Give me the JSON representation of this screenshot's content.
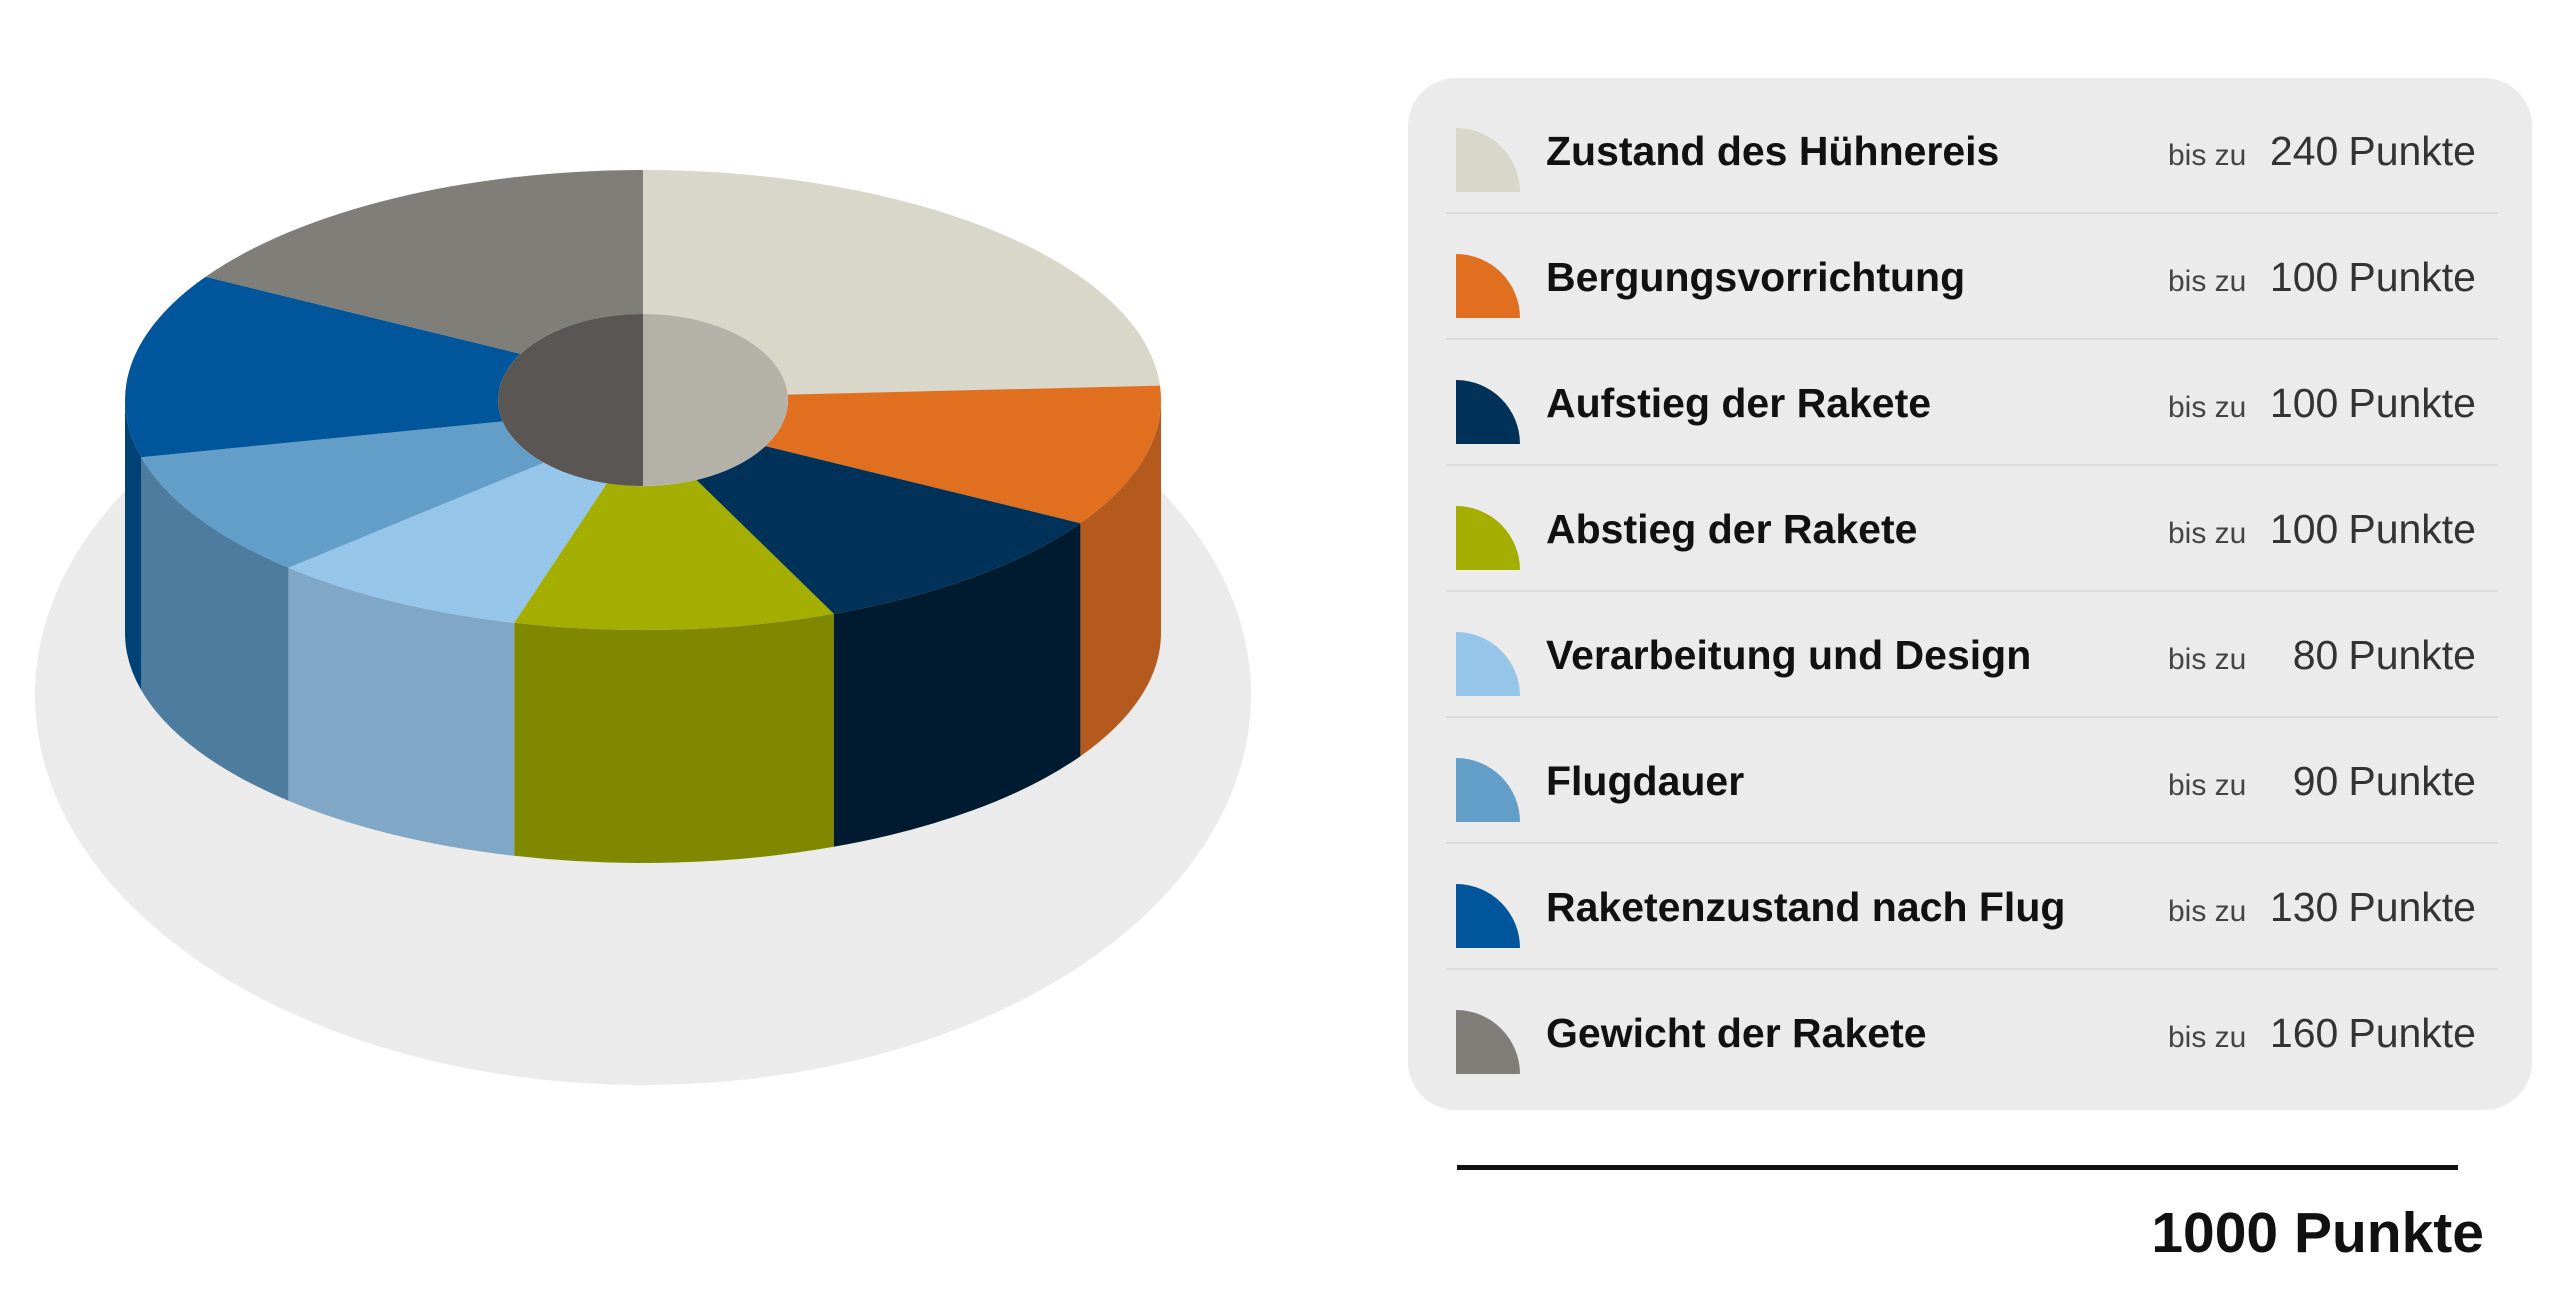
{
  "chart_data": {
    "type": "pie",
    "variant": "3d-donut",
    "categories": [
      "Zustand des Hühnereis",
      "Bergungsvorrichtung",
      "Aufstieg der Rakete",
      "Abstieg der Rakete",
      "Verarbeitung und Design",
      "Flugdauer",
      "Raketenzustand nach Flug",
      "Gewicht der Rakete"
    ],
    "values": [
      240,
      100,
      100,
      100,
      80,
      90,
      130,
      160
    ],
    "colors": [
      "#d8d7ca",
      "#e07020",
      "#003259",
      "#a4ae00",
      "#96c5ea",
      "#629ec8",
      "#00559b",
      "#7f7e79"
    ],
    "side_colors": [
      "#b8b7ab",
      "#b45a1e",
      "#001a30",
      "#808800",
      "#80a8c6",
      "#4e7c9f",
      "#004276",
      "#646460"
    ],
    "legend_position": "right"
  },
  "legend": {
    "prefix": "bis zu",
    "unit": "Punkte",
    "items": [
      {
        "label": "Zustand des Hühnereis",
        "value": "240",
        "color": "#d8d7ca"
      },
      {
        "label": "Bergungsvorrichtung",
        "value": "100",
        "color": "#e07020"
      },
      {
        "label": "Aufstieg der Rakete",
        "value": "100",
        "color": "#003259"
      },
      {
        "label": "Abstieg der Rakete",
        "value": "100",
        "color": "#a4ae00"
      },
      {
        "label": "Verarbeitung und Design",
        "value": "80",
        "color": "#96c5ea"
      },
      {
        "label": "Flugdauer",
        "value": "90",
        "color": "#629ec8"
      },
      {
        "label": "Raketenzustand nach Flug",
        "value": "130",
        "color": "#00559b"
      },
      {
        "label": "Gewicht der Rakete",
        "value": "160",
        "color": "#7f7e79"
      }
    ]
  },
  "total": {
    "label": "1000 Punkte"
  },
  "colors": {
    "panel_bg": "#ebebeb",
    "shadow": "#ebebeb",
    "hole_left": "#5a5654",
    "hole_right": "#b3b1a8"
  }
}
